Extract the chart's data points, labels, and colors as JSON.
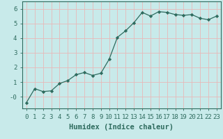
{
  "x": [
    0,
    1,
    2,
    3,
    4,
    5,
    6,
    7,
    8,
    9,
    10,
    11,
    12,
    13,
    14,
    15,
    16,
    17,
    18,
    19,
    20,
    21,
    22,
    23
  ],
  "y": [
    -0.4,
    0.55,
    0.35,
    0.4,
    0.9,
    1.1,
    1.5,
    1.65,
    1.45,
    1.6,
    2.55,
    4.05,
    4.5,
    5.05,
    5.75,
    5.5,
    5.8,
    5.75,
    5.6,
    5.55,
    5.6,
    5.35,
    5.25,
    5.5
  ],
  "line_color": "#2e6b5e",
  "marker": "D",
  "marker_size": 2.2,
  "bg_color": "#c8eaea",
  "grid_color": "#e8b8b8",
  "xlabel": "Humidex (Indice chaleur)",
  "xlabel_fontsize": 7.5,
  "tick_fontsize": 6.5,
  "xlim": [
    -0.5,
    23.5
  ],
  "ylim": [
    -0.8,
    6.5
  ],
  "yticks": [
    0,
    1,
    2,
    3,
    4,
    5,
    6
  ],
  "ytick_labels": [
    "-0",
    "1",
    "2",
    "3",
    "4",
    "5",
    "6"
  ],
  "xticks": [
    0,
    1,
    2,
    3,
    4,
    5,
    6,
    7,
    8,
    9,
    10,
    11,
    12,
    13,
    14,
    15,
    16,
    17,
    18,
    19,
    20,
    21,
    22,
    23
  ]
}
